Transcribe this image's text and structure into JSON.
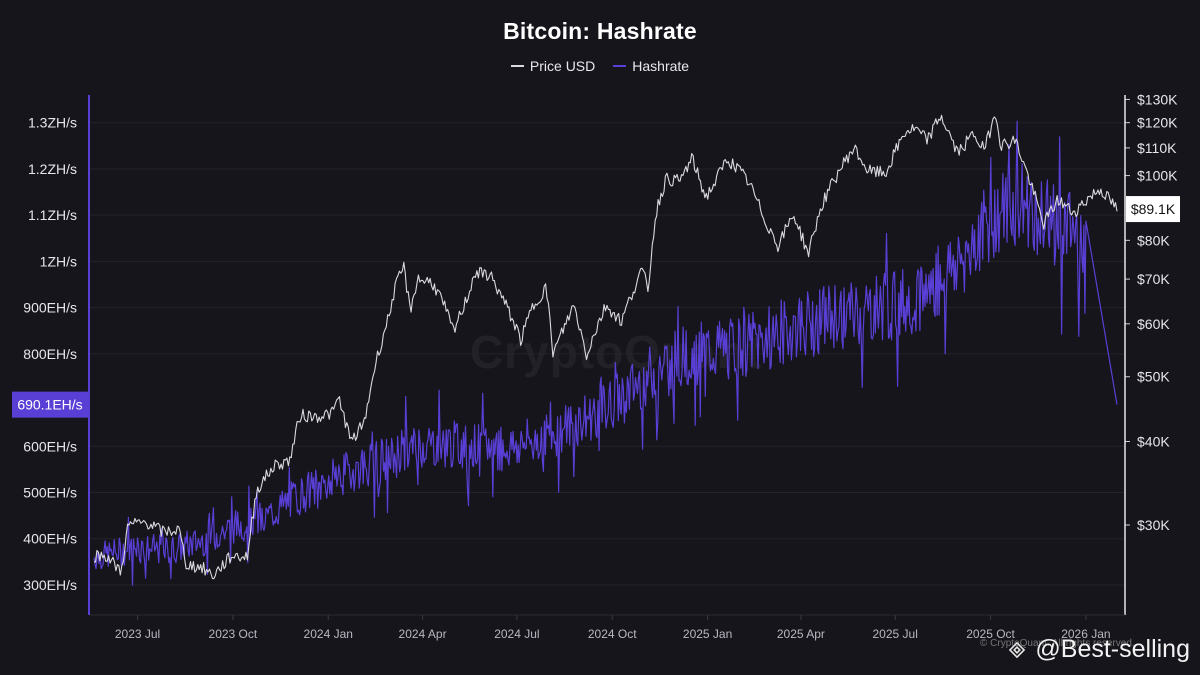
{
  "chart_data": {
    "type": "line",
    "title": "Bitcoin: Hashrate",
    "legend": {
      "placement": "top-center",
      "entries": [
        "Price USD",
        "Hashrate"
      ]
    },
    "colors": {
      "price": "#d9d9de",
      "hashrate": "#5a3fd6",
      "background": "#16151b",
      "grid": "#24232b",
      "current_hash_badge": "#5a3fd6",
      "current_price_badge": "#ffffff"
    },
    "x_axis": {
      "ticks": [
        "2023 Jul",
        "2023 Oct",
        "2024 Jan",
        "2024 Apr",
        "2024 Jul",
        "2024 Oct",
        "2025 Jan",
        "2025 Apr",
        "2025 Jul",
        "2025 Oct",
        "2026 Jan"
      ],
      "range": [
        "2023-05-20",
        "2026-01-31"
      ]
    },
    "y_left": {
      "label": "",
      "unit": "EH/s",
      "range": [
        235,
        1360
      ],
      "ticks": [
        {
          "value": 300,
          "label": "300EH/s"
        },
        {
          "value": 400,
          "label": "400EH/s"
        },
        {
          "value": 500,
          "label": "500EH/s"
        },
        {
          "value": 600,
          "label": "600EH/s"
        },
        {
          "value": 800,
          "label": "800EH/s"
        },
        {
          "value": 900,
          "label": "900EH/s"
        },
        {
          "value": 1000,
          "label": "1ZH/s"
        },
        {
          "value": 1100,
          "label": "1.1ZH/s"
        },
        {
          "value": 1200,
          "label": "1.2ZH/s"
        },
        {
          "value": 1300,
          "label": "1.3ZH/s"
        }
      ],
      "current": {
        "value": 690.1,
        "label": "690.1EH/s"
      }
    },
    "y_right": {
      "label": "",
      "unit": "USD",
      "scale": "log",
      "range": [
        22000,
        132000
      ],
      "ticks": [
        {
          "value": 30000,
          "label": "$30K"
        },
        {
          "value": 40000,
          "label": "$40K"
        },
        {
          "value": 50000,
          "label": "$50K"
        },
        {
          "value": 60000,
          "label": "$60K"
        },
        {
          "value": 70000,
          "label": "$70K"
        },
        {
          "value": 80000,
          "label": "$80K"
        },
        {
          "value": 100000,
          "label": "$100K"
        },
        {
          "value": 110000,
          "label": "$110K"
        },
        {
          "value": 120000,
          "label": "$120K"
        },
        {
          "value": 130000,
          "label": "$130K"
        }
      ],
      "current": {
        "value": 89100,
        "label": "$89.1K"
      }
    },
    "grid": true,
    "series": [
      {
        "name": "Price USD",
        "axis": "right",
        "points": [
          [
            "2023-05-20",
            27000
          ],
          [
            "2023-06-01",
            27000
          ],
          [
            "2023-06-15",
            25500
          ],
          [
            "2023-06-22",
            30000
          ],
          [
            "2023-07-10",
            30300
          ],
          [
            "2023-07-25",
            29300
          ],
          [
            "2023-08-10",
            29500
          ],
          [
            "2023-08-17",
            26200
          ],
          [
            "2023-09-01",
            25900
          ],
          [
            "2023-09-12",
            25200
          ],
          [
            "2023-09-30",
            27000
          ],
          [
            "2023-10-15",
            26900
          ],
          [
            "2023-10-24",
            33900
          ],
          [
            "2023-11-10",
            36800
          ],
          [
            "2023-11-25",
            37500
          ],
          [
            "2023-12-05",
            43800
          ],
          [
            "2023-12-20",
            43600
          ],
          [
            "2024-01-05",
            44100
          ],
          [
            "2024-01-11",
            46500
          ],
          [
            "2024-01-23",
            39900
          ],
          [
            "2024-02-05",
            42700
          ],
          [
            "2024-02-15",
            51800
          ],
          [
            "2024-02-28",
            61200
          ],
          [
            "2024-03-05",
            67500
          ],
          [
            "2024-03-14",
            73000
          ],
          [
            "2024-03-20",
            62500
          ],
          [
            "2024-03-27",
            70000
          ],
          [
            "2024-04-10",
            69300
          ],
          [
            "2024-04-20",
            64900
          ],
          [
            "2024-05-01",
            58300
          ],
          [
            "2024-05-15",
            66200
          ],
          [
            "2024-05-21",
            71400
          ],
          [
            "2024-06-05",
            71100
          ],
          [
            "2024-06-25",
            61800
          ],
          [
            "2024-07-05",
            56700
          ],
          [
            "2024-07-15",
            63000
          ],
          [
            "2024-07-29",
            68200
          ],
          [
            "2024-08-05",
            54000
          ],
          [
            "2024-08-25",
            64000
          ],
          [
            "2024-09-06",
            53900
          ],
          [
            "2024-09-25",
            64000
          ],
          [
            "2024-10-10",
            60500
          ],
          [
            "2024-10-29",
            72000
          ],
          [
            "2024-11-05",
            68000
          ],
          [
            "2024-11-12",
            88000
          ],
          [
            "2024-11-22",
            99000
          ],
          [
            "2024-12-05",
            98000
          ],
          [
            "2024-12-17",
            106000
          ],
          [
            "2024-12-30",
            92800
          ],
          [
            "2025-01-07",
            96900
          ],
          [
            "2025-01-20",
            106000
          ],
          [
            "2025-01-31",
            102000
          ],
          [
            "2025-02-10",
            97500
          ],
          [
            "2025-02-25",
            86000
          ],
          [
            "2025-03-10",
            78600
          ],
          [
            "2025-03-25",
            87500
          ],
          [
            "2025-04-08",
            76300
          ],
          [
            "2025-04-22",
            91000
          ],
          [
            "2025-05-10",
            103000
          ],
          [
            "2025-05-22",
            110000
          ],
          [
            "2025-06-05",
            101500
          ],
          [
            "2025-06-22",
            100800
          ],
          [
            "2025-07-10",
            116000
          ],
          [
            "2025-07-20",
            117500
          ],
          [
            "2025-08-01",
            113000
          ],
          [
            "2025-08-14",
            123000
          ],
          [
            "2025-08-30",
            108000
          ],
          [
            "2025-09-15",
            115500
          ],
          [
            "2025-09-25",
            109000
          ],
          [
            "2025-10-06",
            124500
          ],
          [
            "2025-10-11",
            111000
          ],
          [
            "2025-10-25",
            113000
          ],
          [
            "2025-11-05",
            101000
          ],
          [
            "2025-11-21",
            84500
          ],
          [
            "2025-12-05",
            92000
          ],
          [
            "2025-12-20",
            88000
          ],
          [
            "2026-01-05",
            93000
          ],
          [
            "2026-01-15",
            95500
          ],
          [
            "2026-01-31",
            89100
          ]
        ]
      },
      {
        "name": "Hashrate",
        "axis": "left",
        "points": [
          [
            "2023-05-20",
            360
          ],
          [
            "2023-07-01",
            380
          ],
          [
            "2023-08-01",
            375
          ],
          [
            "2023-09-01",
            395
          ],
          [
            "2023-10-01",
            425
          ],
          [
            "2023-11-01",
            445
          ],
          [
            "2023-12-01",
            490
          ],
          [
            "2024-01-01",
            525
          ],
          [
            "2024-02-01",
            555
          ],
          [
            "2024-03-01",
            575
          ],
          [
            "2024-04-01",
            605
          ],
          [
            "2024-05-01",
            605
          ],
          [
            "2024-06-01",
            595
          ],
          [
            "2024-07-01",
            600
          ],
          [
            "2024-08-01",
            625
          ],
          [
            "2024-09-01",
            655
          ],
          [
            "2024-10-01",
            690
          ],
          [
            "2024-11-01",
            745
          ],
          [
            "2024-12-01",
            790
          ],
          [
            "2025-01-01",
            805
          ],
          [
            "2025-02-01",
            815
          ],
          [
            "2025-03-01",
            835
          ],
          [
            "2025-04-01",
            860
          ],
          [
            "2025-05-01",
            880
          ],
          [
            "2025-06-01",
            890
          ],
          [
            "2025-07-01",
            905
          ],
          [
            "2025-08-01",
            935
          ],
          [
            "2025-09-01",
            1000
          ],
          [
            "2025-10-01",
            1090
          ],
          [
            "2025-11-01",
            1120
          ],
          [
            "2025-12-01",
            1080
          ],
          [
            "2026-01-01",
            1050
          ],
          [
            "2026-01-31",
            690.1
          ]
        ]
      }
    ],
    "watermark": "CryptoQuant",
    "credit": "© CryptoQuant. All rights reserved.",
    "handle": "@Best-selling"
  }
}
